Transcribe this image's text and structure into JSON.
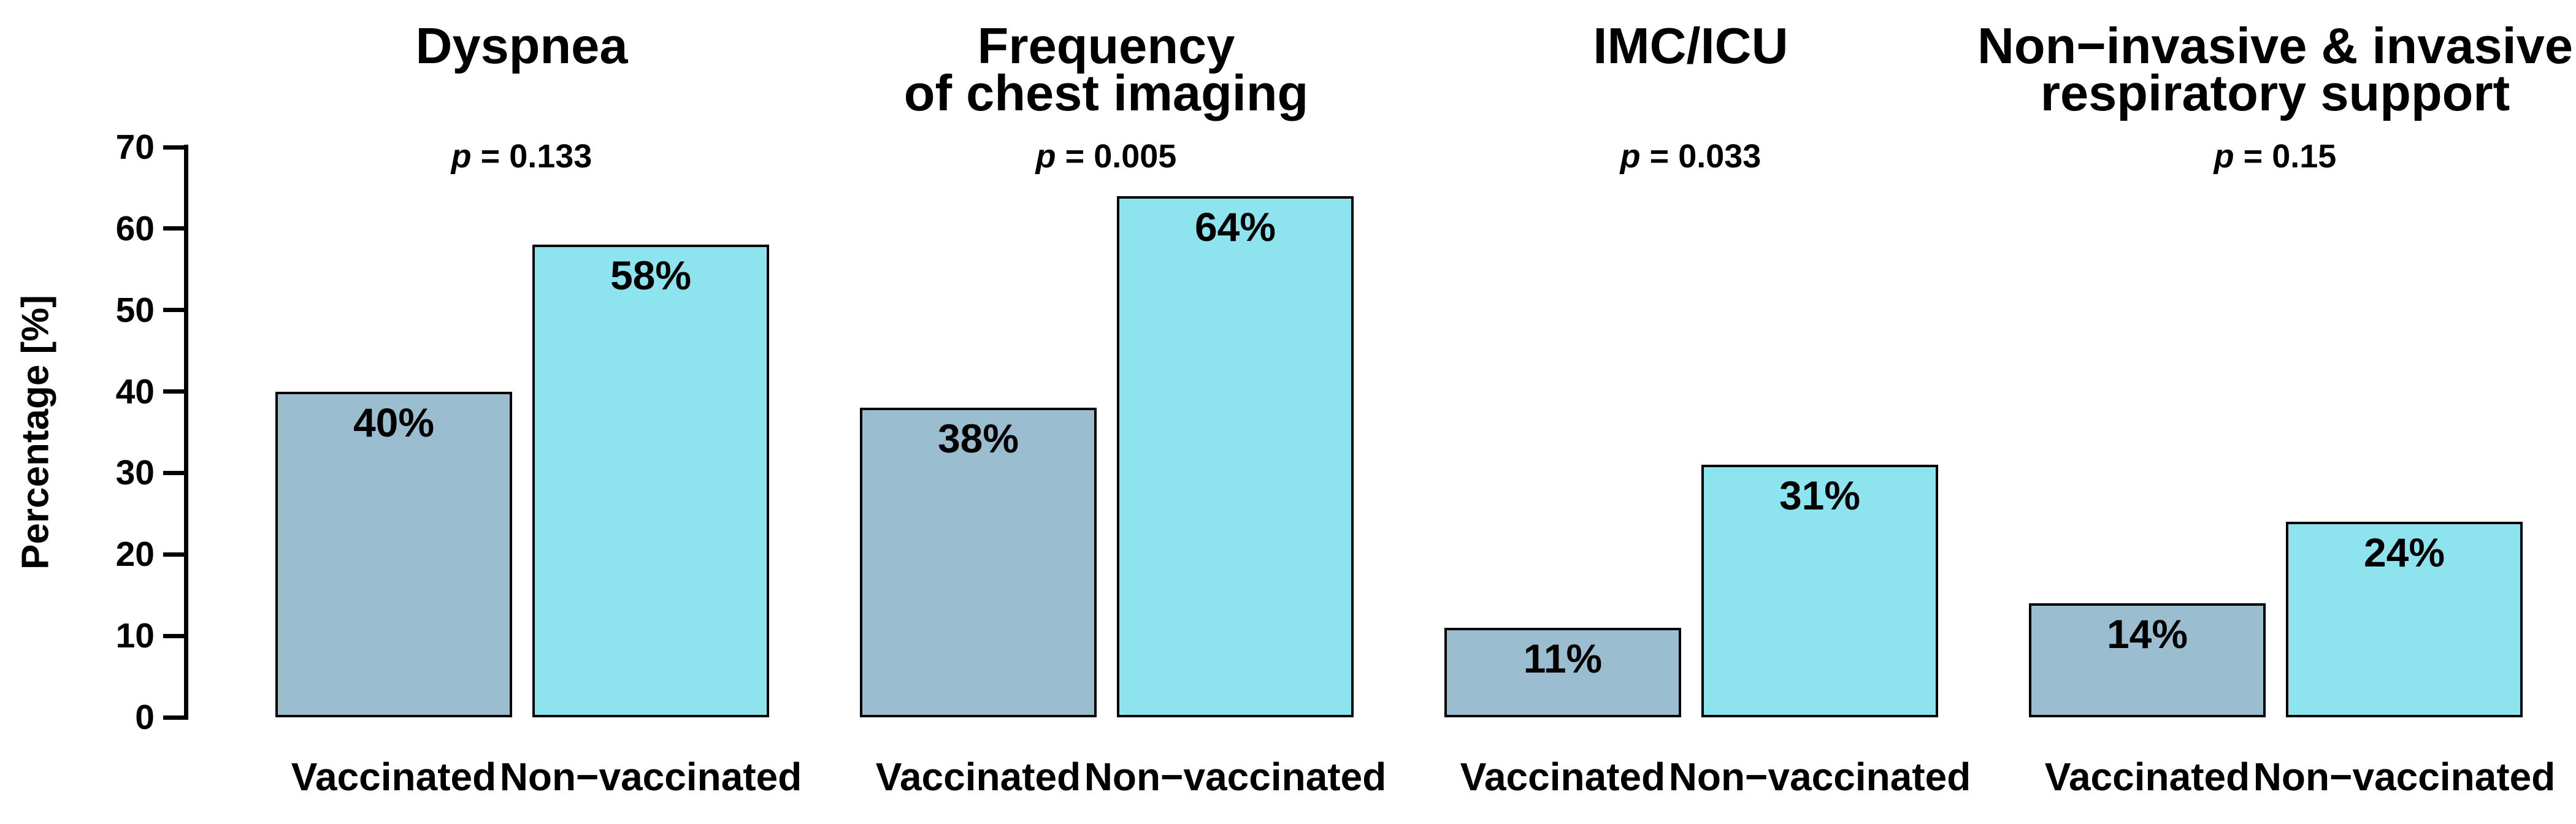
{
  "chart_data": {
    "type": "bar",
    "ylabel": "Percentage [%]",
    "ylim": [
      0,
      70
    ],
    "yticks": [
      0,
      10,
      20,
      30,
      40,
      50,
      60,
      70
    ],
    "grid": false,
    "legend": "none",
    "categories": [
      "Vaccinated",
      "Non−vaccinated"
    ],
    "series_colors": {
      "vaccinated": "#9ABECF",
      "non_vaccinated": "#8DE4EE"
    },
    "bar_border_color": "#000000",
    "background_color": "#FFFFFF",
    "panels": [
      {
        "title": "Dyspnea",
        "p_sym": "p",
        "p_rest": " = 0.133",
        "values": [
          40,
          58
        ],
        "labels": [
          "40%",
          "58%"
        ]
      },
      {
        "title": "Frequency\nof chest imaging",
        "p_sym": "p",
        "p_rest": " = 0.005",
        "values": [
          38,
          64
        ],
        "labels": [
          "38%",
          "64%"
        ]
      },
      {
        "title": "IMC/ICU",
        "p_sym": "p",
        "p_rest": " = 0.033",
        "values": [
          11,
          31
        ],
        "labels": [
          "11%",
          "31%"
        ]
      },
      {
        "title": "Non−invasive & invasive\nrespiratory support",
        "p_sym": "p",
        "p_rest": " = 0.15",
        "values": [
          14,
          24
        ],
        "labels": [
          "14%",
          "24%"
        ]
      }
    ]
  }
}
